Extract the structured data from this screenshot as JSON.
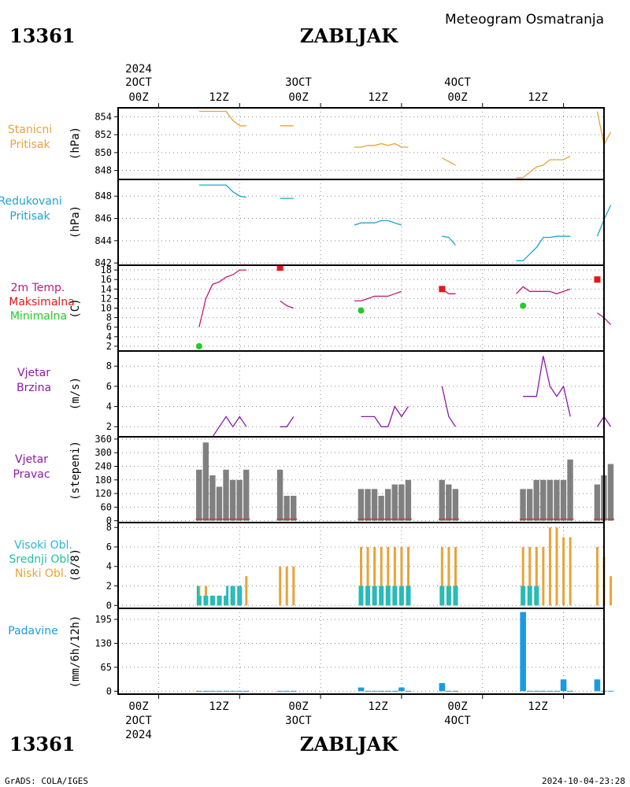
{
  "header": {
    "station_id": "13361",
    "station_name": "ZABLJAK",
    "meteogram_title": "Meteogram Osmatranja"
  },
  "footer": {
    "station_id": "13361",
    "station_name": "ZABLJAK",
    "credit": "GrADS: COLA/IGES",
    "timestamp": "2024-10-04-23:28"
  },
  "time_axis": {
    "top_year": "2024",
    "bottom_year": "2024",
    "day_labels": [
      "2OCT",
      "3OCT",
      "4OCT"
    ],
    "hour_labels": [
      "00Z",
      "12Z",
      "00Z",
      "12Z",
      "00Z",
      "12Z"
    ]
  },
  "panels": {
    "station_pressure": {
      "label_lines": [
        "Stanicni",
        "Pritisak"
      ],
      "unit": "(hPa)"
    },
    "reduced_pressure": {
      "label_lines": [
        "Redukovani",
        "Pritisak"
      ],
      "unit": "(hPa)"
    },
    "temperature": {
      "label_lines": [
        "2m Temp.",
        "Maksimalna",
        "Minimalna"
      ],
      "unit": "(C)"
    },
    "wind_speed": {
      "label_lines": [
        "Vjetar",
        "Brzina"
      ],
      "unit": "(m/s)"
    },
    "wind_direction": {
      "label_lines": [
        "Vjetar",
        "Pravac"
      ],
      "unit": "(stepeni)"
    },
    "clouds": {
      "label_lines": [
        "Visoki Obl.",
        "Srednji Obl.",
        "Niski Obl."
      ],
      "unit": "(8/8)"
    },
    "precipitation": {
      "label_lines": [
        "Padavine"
      ],
      "unit": "(mm/6h/12h)"
    }
  },
  "colors": {
    "station_pressure": "#e8a33a",
    "reduced_pressure": "#1ea5cf",
    "temperature": "#c0187c",
    "tmax": "#e8161b",
    "tmin": "#22cc22",
    "wind": "#8b1aa8",
    "wind_direction_bar": "#808080",
    "wind_direction_base": "#cc3333",
    "cloud_high": "#27b6d6",
    "cloud_mid": "#22c0a0",
    "cloud_low": "#e8a33a",
    "precipitation": "#1a9be0"
  },
  "chart_data": [
    {
      "type": "line",
      "panel": "station_pressure",
      "x_unit": "hours since 2 Oct 2024 00Z",
      "xlim": [
        -6,
        66
      ],
      "ylim": [
        847,
        855
      ],
      "yticks": [
        848,
        850,
        852,
        854
      ],
      "series": [
        {
          "segments": [
            [
              [
                6,
                854.6
              ],
              [
                7,
                854.6
              ],
              [
                8,
                854.6
              ],
              [
                9,
                854.6
              ],
              [
                10,
                854.6
              ],
              [
                11,
                853.6
              ],
              [
                12,
                853.0
              ],
              [
                13,
                853.0
              ]
            ],
            [
              [
                18,
                853.0
              ],
              [
                19,
                853.0
              ],
              [
                20,
                853.0
              ]
            ],
            [
              [
                29,
                850.6
              ],
              [
                30,
                850.6
              ],
              [
                31,
                850.8
              ],
              [
                32,
                850.8
              ],
              [
                33,
                851.0
              ],
              [
                34,
                850.8
              ],
              [
                35,
                851.0
              ],
              [
                36,
                850.6
              ],
              [
                37,
                850.6
              ]
            ],
            [
              [
                42,
                849.4
              ],
              [
                43,
                849.0
              ],
              [
                44,
                848.6
              ]
            ],
            [
              [
                53,
                847.2
              ],
              [
                54,
                847.2
              ],
              [
                55,
                847.8
              ],
              [
                56,
                848.4
              ],
              [
                57,
                848.6
              ],
              [
                58,
                849.2
              ],
              [
                59,
                849.2
              ],
              [
                60,
                849.2
              ],
              [
                61,
                849.6
              ]
            ],
            [
              [
                65,
                854.6
              ],
              [
                66,
                850.9
              ],
              [
                67,
                852.3
              ]
            ]
          ]
        }
      ]
    },
    {
      "type": "line",
      "panel": "reduced_pressure",
      "x_unit": "hours since 2 Oct 2024 00Z",
      "xlim": [
        -6,
        66
      ],
      "ylim": [
        841.8,
        849.5
      ],
      "yticks": [
        842,
        844,
        846,
        848
      ],
      "series": [
        {
          "segments": [
            [
              [
                6,
                849.0
              ],
              [
                7,
                849.0
              ],
              [
                8,
                849.0
              ],
              [
                9,
                849.0
              ],
              [
                10,
                849.0
              ],
              [
                11,
                848.4
              ],
              [
                12,
                848.0
              ],
              [
                13,
                847.9
              ]
            ],
            [
              [
                18,
                847.8
              ],
              [
                19,
                847.8
              ],
              [
                20,
                847.8
              ]
            ],
            [
              [
                29,
                845.4
              ],
              [
                30,
                845.6
              ],
              [
                31,
                845.6
              ],
              [
                32,
                845.6
              ],
              [
                33,
                845.8
              ],
              [
                34,
                845.8
              ],
              [
                35,
                845.6
              ],
              [
                36,
                845.4
              ]
            ],
            [
              [
                42,
                844.4
              ],
              [
                43,
                844.3
              ],
              [
                44,
                843.6
              ]
            ],
            [
              [
                53,
                842.2
              ],
              [
                54,
                842.2
              ],
              [
                55,
                842.8
              ],
              [
                56,
                843.4
              ],
              [
                57,
                844.3
              ],
              [
                58,
                844.3
              ],
              [
                59,
                844.4
              ],
              [
                60,
                844.4
              ],
              [
                61,
                844.4
              ]
            ],
            [
              [
                65,
                844.4
              ],
              [
                66,
                845.9
              ],
              [
                67,
                847.2
              ]
            ]
          ]
        }
      ]
    },
    {
      "type": "line",
      "panel": "temperature",
      "x_unit": "hours since 2 Oct 2024 00Z",
      "xlim": [
        -6,
        66
      ],
      "ylim": [
        1,
        19
      ],
      "yticks": [
        2,
        4,
        6,
        8,
        10,
        12,
        14,
        16,
        18
      ],
      "series": [
        {
          "name": "2m Temp.",
          "segments": [
            [
              [
                6,
                6.0
              ],
              [
                7,
                12.0
              ],
              [
                8,
                15.0
              ],
              [
                9,
                15.5
              ],
              [
                10,
                16.5
              ],
              [
                11,
                17.0
              ],
              [
                12,
                18.0
              ],
              [
                13,
                18.0
              ]
            ],
            [
              [
                18,
                11.5
              ],
              [
                19,
                10.5
              ],
              [
                20,
                10.0
              ]
            ],
            [
              [
                29,
                11.5
              ],
              [
                30,
                11.5
              ],
              [
                31,
                12.0
              ],
              [
                32,
                12.5
              ],
              [
                33,
                12.5
              ],
              [
                34,
                12.5
              ],
              [
                35,
                13.0
              ],
              [
                36,
                13.5
              ]
            ],
            [
              [
                42,
                14.0
              ],
              [
                43,
                13.0
              ],
              [
                44,
                13.0
              ]
            ],
            [
              [
                53,
                13.0
              ],
              [
                54,
                14.5
              ],
              [
                55,
                13.5
              ],
              [
                56,
                13.5
              ],
              [
                57,
                13.5
              ],
              [
                58,
                13.5
              ],
              [
                59,
                13.0
              ],
              [
                60,
                13.5
              ],
              [
                61,
                14.0
              ]
            ],
            [
              [
                65,
                9.0
              ],
              [
                66,
                8.0
              ],
              [
                67,
                6.5
              ]
            ]
          ]
        },
        {
          "name": "Maksimalna",
          "points": [
            [
              18,
              18.5
            ],
            [
              42,
              14.0
            ],
            [
              65,
              16.0
            ]
          ]
        },
        {
          "name": "Minimalna",
          "points": [
            [
              6,
              2.0
            ],
            [
              30,
              9.5
            ],
            [
              54,
              10.5
            ]
          ]
        }
      ]
    },
    {
      "type": "line",
      "panel": "wind_speed",
      "x_unit": "hours since 2 Oct 2024 00Z",
      "xlim": [
        -6,
        66
      ],
      "ylim": [
        1,
        9.5
      ],
      "yticks": [
        2,
        4,
        6,
        8
      ],
      "series": [
        {
          "segments": [
            [
              [
                6,
                1.0
              ],
              [
                7,
                1.0
              ],
              [
                8,
                1.0
              ],
              [
                9,
                2.0
              ],
              [
                10,
                3.0
              ],
              [
                11,
                2.0
              ],
              [
                12,
                3.0
              ],
              [
                13,
                2.0
              ]
            ],
            [
              [
                18,
                2.0
              ],
              [
                19,
                2.0
              ],
              [
                20,
                3.0
              ]
            ],
            [
              [
                30,
                3.0
              ],
              [
                31,
                3.0
              ],
              [
                32,
                3.0
              ],
              [
                33,
                2.0
              ],
              [
                34,
                2.0
              ],
              [
                35,
                4.0
              ],
              [
                36,
                3.0
              ],
              [
                37,
                4.0
              ]
            ],
            [
              [
                42,
                6.0
              ],
              [
                43,
                3.0
              ],
              [
                44,
                2.0
              ]
            ],
            [
              [
                54,
                5.0
              ],
              [
                55,
                5.0
              ],
              [
                56,
                5.0
              ],
              [
                57,
                9.0
              ],
              [
                58,
                6.0
              ],
              [
                59,
                5.0
              ],
              [
                60,
                6.0
              ],
              [
                61,
                3.0
              ]
            ],
            [
              [
                65,
                2.0
              ],
              [
                66,
                3.0
              ],
              [
                67,
                2.0
              ]
            ]
          ]
        }
      ]
    },
    {
      "type": "bar",
      "panel": "wind_direction",
      "x_unit": "hours since 2 Oct 2024 00Z",
      "xlim": [
        -6,
        66
      ],
      "ylim": [
        -8,
        370
      ],
      "yticks": [
        0,
        60,
        120,
        180,
        240,
        300,
        360
      ],
      "x": [
        6,
        7,
        8,
        9,
        10,
        11,
        12,
        13,
        18,
        19,
        20,
        30,
        31,
        32,
        33,
        34,
        35,
        36,
        37,
        42,
        43,
        44,
        54,
        55,
        56,
        57,
        58,
        59,
        60,
        61,
        65,
        66,
        67
      ],
      "values": [
        225,
        345,
        200,
        150,
        225,
        180,
        180,
        225,
        225,
        110,
        110,
        140,
        140,
        140,
        110,
        140,
        160,
        160,
        180,
        180,
        160,
        140,
        140,
        140,
        180,
        180,
        180,
        180,
        180,
        270,
        160,
        200,
        250
      ]
    },
    {
      "type": "bar",
      "panel": "clouds",
      "x_unit": "hours since 2 Oct 2024 00Z",
      "xlim": [
        -6,
        66
      ],
      "ylim": [
        -0.3,
        8.5
      ],
      "yticks": [
        0,
        2,
        4,
        6,
        8
      ],
      "x": [
        6,
        7,
        8,
        9,
        10,
        11,
        12,
        13,
        18,
        19,
        20,
        30,
        31,
        32,
        33,
        34,
        35,
        36,
        37,
        42,
        43,
        44,
        54,
        55,
        56,
        57,
        58,
        59,
        60,
        61,
        65,
        66,
        67
      ],
      "series": [
        {
          "name": "Niski Obl.",
          "values": [
            2,
            2,
            1,
            1,
            1,
            1,
            1,
            3,
            4,
            4,
            4,
            6,
            6,
            6,
            6,
            6,
            6,
            6,
            6,
            6,
            6,
            6,
            6,
            6,
            6,
            6,
            8,
            8,
            7,
            7,
            6,
            5,
            3
          ]
        },
        {
          "name": "Srednji Obl.",
          "values": [
            2,
            1,
            1,
            1,
            1,
            2,
            2,
            0,
            0,
            0,
            0,
            2,
            2,
            2,
            2,
            2,
            2,
            2,
            2,
            2,
            2,
            2,
            2,
            2,
            2,
            0,
            0,
            0,
            0,
            0,
            0,
            0,
            0
          ]
        },
        {
          "name": "Visoki Obl.",
          "values": [
            1,
            1,
            1,
            1,
            2,
            2,
            2,
            0,
            0,
            0,
            0,
            2,
            2,
            2,
            2,
            2,
            2,
            2,
            2,
            2,
            2,
            2,
            2,
            2,
            2,
            0,
            0,
            0,
            0,
            0,
            0,
            0,
            0
          ]
        }
      ]
    },
    {
      "type": "bar",
      "panel": "precipitation",
      "x_unit": "hours since 2 Oct 2024 00Z",
      "xlim": [
        -6,
        66
      ],
      "ylim": [
        -8,
        225
      ],
      "yticks": [
        0,
        65,
        130,
        195
      ],
      "x": [
        6,
        7,
        8,
        9,
        10,
        11,
        12,
        13,
        18,
        19,
        20,
        30,
        31,
        32,
        33,
        34,
        35,
        36,
        37,
        42,
        43,
        44,
        54,
        55,
        56,
        57,
        58,
        59,
        60,
        61,
        65,
        66,
        67
      ],
      "values": [
        1,
        1,
        1,
        1,
        1,
        1,
        1,
        1,
        1,
        1,
        1,
        10,
        1,
        1,
        1,
        1,
        1,
        10,
        1,
        22,
        1,
        1,
        215,
        1,
        1,
        1,
        1,
        1,
        32,
        1,
        32,
        1,
        1
      ]
    }
  ]
}
